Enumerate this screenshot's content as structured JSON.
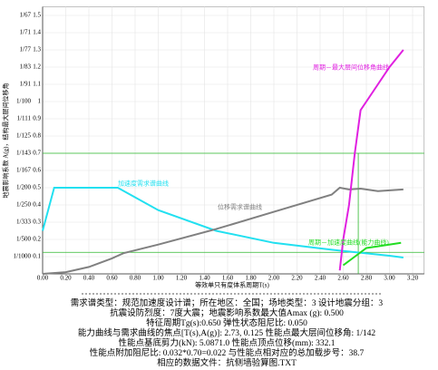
{
  "chart_data": {
    "type": "line",
    "y_label": "地震影响系数 A(g)，结构最大层间位移角",
    "x_label": "等效单只有度体系周期T(s)",
    "xlim": [
      0,
      3.3
    ],
    "ylim": [
      0,
      1.55
    ],
    "xticks": [
      {
        "value": 0,
        "label": "0.00"
      },
      {
        "value": 0.2,
        "label": "0.20"
      },
      {
        "value": 0.4,
        "label": "0.40"
      },
      {
        "value": 0.6,
        "label": "0.60"
      },
      {
        "value": 0.8,
        "label": "0.80"
      },
      {
        "value": 1.0,
        "label": "1.00"
      },
      {
        "value": 1.2,
        "label": "1.20"
      },
      {
        "value": 1.4,
        "label": "1.40"
      },
      {
        "value": 1.6,
        "label": "1.60"
      },
      {
        "value": 1.8,
        "label": "1.80"
      },
      {
        "value": 2.0,
        "label": "2.00"
      },
      {
        "value": 2.2,
        "label": "2.20"
      },
      {
        "value": 2.4,
        "label": "2.40"
      },
      {
        "value": 2.6,
        "label": "2.60"
      },
      {
        "value": 2.8,
        "label": "2.80"
      },
      {
        "value": 3.0,
        "label": "3.00"
      },
      {
        "value": 3.2,
        "label": "3.20"
      }
    ],
    "yticks": [
      0.1,
      0.2,
      0.3,
      0.4,
      0.5,
      0.6,
      0.7,
      0.8,
      0.9,
      1,
      1.1,
      1.2,
      1.3,
      1.4,
      1.5
    ],
    "ytick_ratio_labels": [
      "1/1000",
      "1/500",
      "1/333",
      "1/250",
      "1/200",
      "1/167",
      "1/143",
      "1/125",
      "1/111",
      "1/100",
      "1/91",
      "1/83",
      "1/77",
      "1/71",
      "1/67"
    ],
    "grid": true,
    "series": [
      {
        "name": "加速度需求谱曲线",
        "color": "#22e0f0",
        "x": [
          0,
          0.1,
          0.65,
          1.0,
          1.5,
          2.0,
          2.5,
          3.0,
          3.12
        ],
        "values": [
          0.25,
          0.5,
          0.5,
          0.37,
          0.25,
          0.18,
          0.14,
          0.105,
          0.095
        ]
      },
      {
        "name": "位移需求谱曲线",
        "color": "#808080",
        "x": [
          0,
          0.2,
          0.4,
          0.6,
          0.7,
          1.0,
          1.5,
          2.0,
          2.5,
          2.57,
          2.65,
          2.75,
          2.9,
          3.12
        ],
        "values": [
          0,
          0.01,
          0.04,
          0.09,
          0.12,
          0.17,
          0.26,
          0.36,
          0.46,
          0.5,
          0.49,
          0.495,
          0.48,
          0.49
        ]
      },
      {
        "name": "周期－最大层间位移角曲线",
        "color": "#e020e0",
        "x": [
          2.57,
          2.6,
          2.65,
          2.7,
          2.75,
          2.85,
          3.0,
          3.12
        ],
        "values": [
          0.02,
          0.2,
          0.4,
          0.7,
          0.95,
          1.05,
          1.2,
          1.3
        ]
      },
      {
        "name": "周期－加速度曲线(能力曲线)",
        "color": "#22dd22",
        "x": [
          2.6,
          2.7,
          2.8,
          2.9,
          3.1
        ],
        "values": [
          0.05,
          0.1,
          0.15,
          0.16,
          0.18
        ]
      }
    ],
    "ref_color": "#2db82d",
    "ref_h": [
      0.7,
      0.125
    ],
    "ref_v": [
      2.73
    ],
    "info_lines": [
      "需求谱类型：规范加速度设计谱；所在地区：全国；场地类型：3 设计地震分组：3",
      "抗震设防烈度：7度大震；地震影响系数最大值Amax (g): 0.500",
      "特征周期Tg(s):0.650 弹性状态阻尼比: 0.050",
      "能力曲线与需求曲线的焦点[T(s),A(g)]: 2.73, 0.125    性能点最大层间位移角:    1/142",
      "性能点基底剪力(kN):    5.0871.0    性能点顶点位移(mm):    332.1",
      "性能点附加阻尼比: 0.032*0.70=0.022    与性能点相对应的总加载步号：38.7",
      "相应的数据文件：抗侧墙验算图.TXT"
    ]
  }
}
